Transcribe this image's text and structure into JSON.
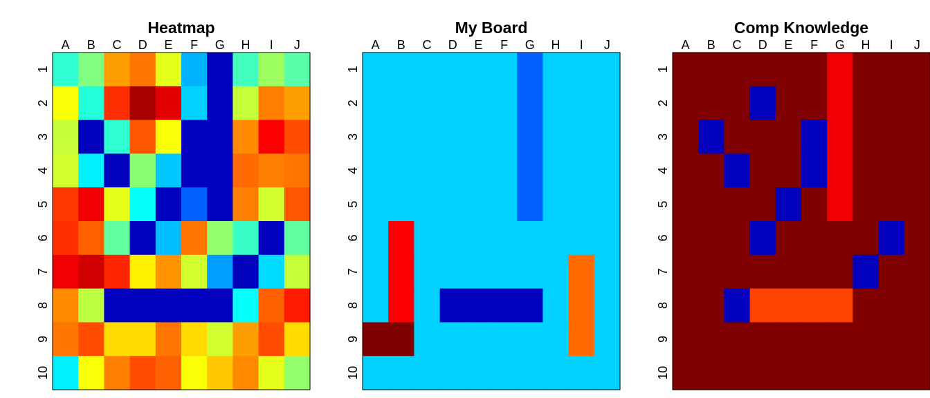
{
  "chart_data": [
    {
      "type": "heatmap",
      "title": "Heatmap",
      "xlabel": "",
      "ylabel": "",
      "x_categories": [
        "A",
        "B",
        "C",
        "D",
        "E",
        "F",
        "G",
        "H",
        "I",
        "J"
      ],
      "y_categories": [
        "1",
        "2",
        "3",
        "4",
        "5",
        "6",
        "7",
        "8",
        "9",
        "10"
      ],
      "colorscale": "jet",
      "value_range": [
        0,
        1
      ],
      "grid": false,
      "values": [
        [
          0.42,
          0.5,
          0.72,
          0.76,
          0.6,
          0.3,
          0.06,
          0.44,
          0.53,
          0.46
        ],
        [
          0.62,
          0.41,
          0.83,
          0.96,
          0.9,
          0.33,
          0.06,
          0.57,
          0.75,
          0.72
        ],
        [
          0.57,
          0.06,
          0.42,
          0.79,
          0.62,
          0.06,
          0.06,
          0.74,
          0.88,
          0.8
        ],
        [
          0.58,
          0.36,
          0.06,
          0.51,
          0.32,
          0.06,
          0.06,
          0.77,
          0.75,
          0.76
        ],
        [
          0.82,
          0.89,
          0.6,
          0.38,
          0.06,
          0.22,
          0.06,
          0.75,
          0.58,
          0.79
        ],
        [
          0.83,
          0.78,
          0.47,
          0.06,
          0.31,
          0.76,
          0.52,
          0.43,
          0.06,
          0.47
        ],
        [
          0.89,
          0.92,
          0.84,
          0.64,
          0.73,
          0.58,
          0.28,
          0.06,
          0.34,
          0.57
        ],
        [
          0.74,
          0.56,
          0.06,
          0.06,
          0.06,
          0.06,
          0.06,
          0.38,
          0.78,
          0.85
        ],
        [
          0.76,
          0.8,
          0.66,
          0.66,
          0.76,
          0.66,
          0.58,
          0.72,
          0.8,
          0.66
        ],
        [
          0.36,
          0.62,
          0.75,
          0.8,
          0.78,
          0.62,
          0.68,
          0.74,
          0.6,
          0.52
        ]
      ]
    },
    {
      "type": "heatmap",
      "title": "My Board",
      "xlabel": "",
      "ylabel": "",
      "x_categories": [
        "A",
        "B",
        "C",
        "D",
        "E",
        "F",
        "G",
        "H",
        "I",
        "J"
      ],
      "y_categories": [
        "1",
        "2",
        "3",
        "4",
        "5",
        "6",
        "7",
        "8",
        "9",
        "10"
      ],
      "colorscale": "jet",
      "value_range": [
        0,
        1
      ],
      "grid": false,
      "values": [
        [
          0.33,
          0.33,
          0.33,
          0.33,
          0.33,
          0.33,
          0.22,
          0.33,
          0.33,
          0.33
        ],
        [
          0.33,
          0.33,
          0.33,
          0.33,
          0.33,
          0.33,
          0.22,
          0.33,
          0.33,
          0.33
        ],
        [
          0.33,
          0.33,
          0.33,
          0.33,
          0.33,
          0.33,
          0.22,
          0.33,
          0.33,
          0.33
        ],
        [
          0.33,
          0.33,
          0.33,
          0.33,
          0.33,
          0.33,
          0.22,
          0.33,
          0.33,
          0.33
        ],
        [
          0.33,
          0.33,
          0.33,
          0.33,
          0.33,
          0.33,
          0.22,
          0.33,
          0.33,
          0.33
        ],
        [
          0.33,
          0.88,
          0.33,
          0.33,
          0.33,
          0.33,
          0.33,
          0.33,
          0.33,
          0.33
        ],
        [
          0.33,
          0.88,
          0.33,
          0.33,
          0.33,
          0.33,
          0.33,
          0.33,
          0.77,
          0.33
        ],
        [
          0.33,
          0.88,
          0.33,
          0.06,
          0.06,
          0.06,
          0.06,
          0.33,
          0.77,
          0.33
        ],
        [
          1.0,
          1.0,
          0.33,
          0.33,
          0.33,
          0.33,
          0.33,
          0.33,
          0.77,
          0.33
        ],
        [
          0.33,
          0.33,
          0.33,
          0.33,
          0.33,
          0.33,
          0.33,
          0.33,
          0.33,
          0.33
        ]
      ]
    },
    {
      "type": "heatmap",
      "title": "Comp Knowledge",
      "xlabel": "",
      "ylabel": "",
      "x_categories": [
        "A",
        "B",
        "C",
        "D",
        "E",
        "F",
        "G",
        "H",
        "I",
        "J"
      ],
      "y_categories": [
        "1",
        "2",
        "3",
        "4",
        "5",
        "6",
        "7",
        "8",
        "9",
        "10"
      ],
      "colorscale": "jet",
      "value_range": [
        0,
        1
      ],
      "grid": false,
      "values": [
        [
          1.0,
          1.0,
          1.0,
          1.0,
          1.0,
          1.0,
          0.89,
          1.0,
          1.0,
          1.0
        ],
        [
          1.0,
          1.0,
          1.0,
          0.06,
          1.0,
          1.0,
          0.89,
          1.0,
          1.0,
          1.0
        ],
        [
          1.0,
          0.06,
          1.0,
          1.0,
          1.0,
          0.06,
          0.89,
          1.0,
          1.0,
          1.0
        ],
        [
          1.0,
          1.0,
          0.06,
          1.0,
          1.0,
          0.06,
          0.89,
          1.0,
          1.0,
          1.0
        ],
        [
          1.0,
          1.0,
          1.0,
          1.0,
          0.06,
          1.0,
          0.89,
          1.0,
          1.0,
          1.0
        ],
        [
          1.0,
          1.0,
          1.0,
          0.06,
          1.0,
          1.0,
          1.0,
          1.0,
          0.06,
          1.0
        ],
        [
          1.0,
          1.0,
          1.0,
          1.0,
          1.0,
          1.0,
          1.0,
          0.06,
          1.0,
          1.0
        ],
        [
          1.0,
          1.0,
          0.06,
          0.81,
          0.81,
          0.81,
          0.81,
          1.0,
          1.0,
          1.0
        ],
        [
          1.0,
          1.0,
          1.0,
          1.0,
          1.0,
          1.0,
          1.0,
          1.0,
          1.0,
          1.0
        ],
        [
          1.0,
          1.0,
          1.0,
          1.0,
          1.0,
          1.0,
          1.0,
          1.0,
          1.0,
          1.0
        ]
      ]
    }
  ]
}
